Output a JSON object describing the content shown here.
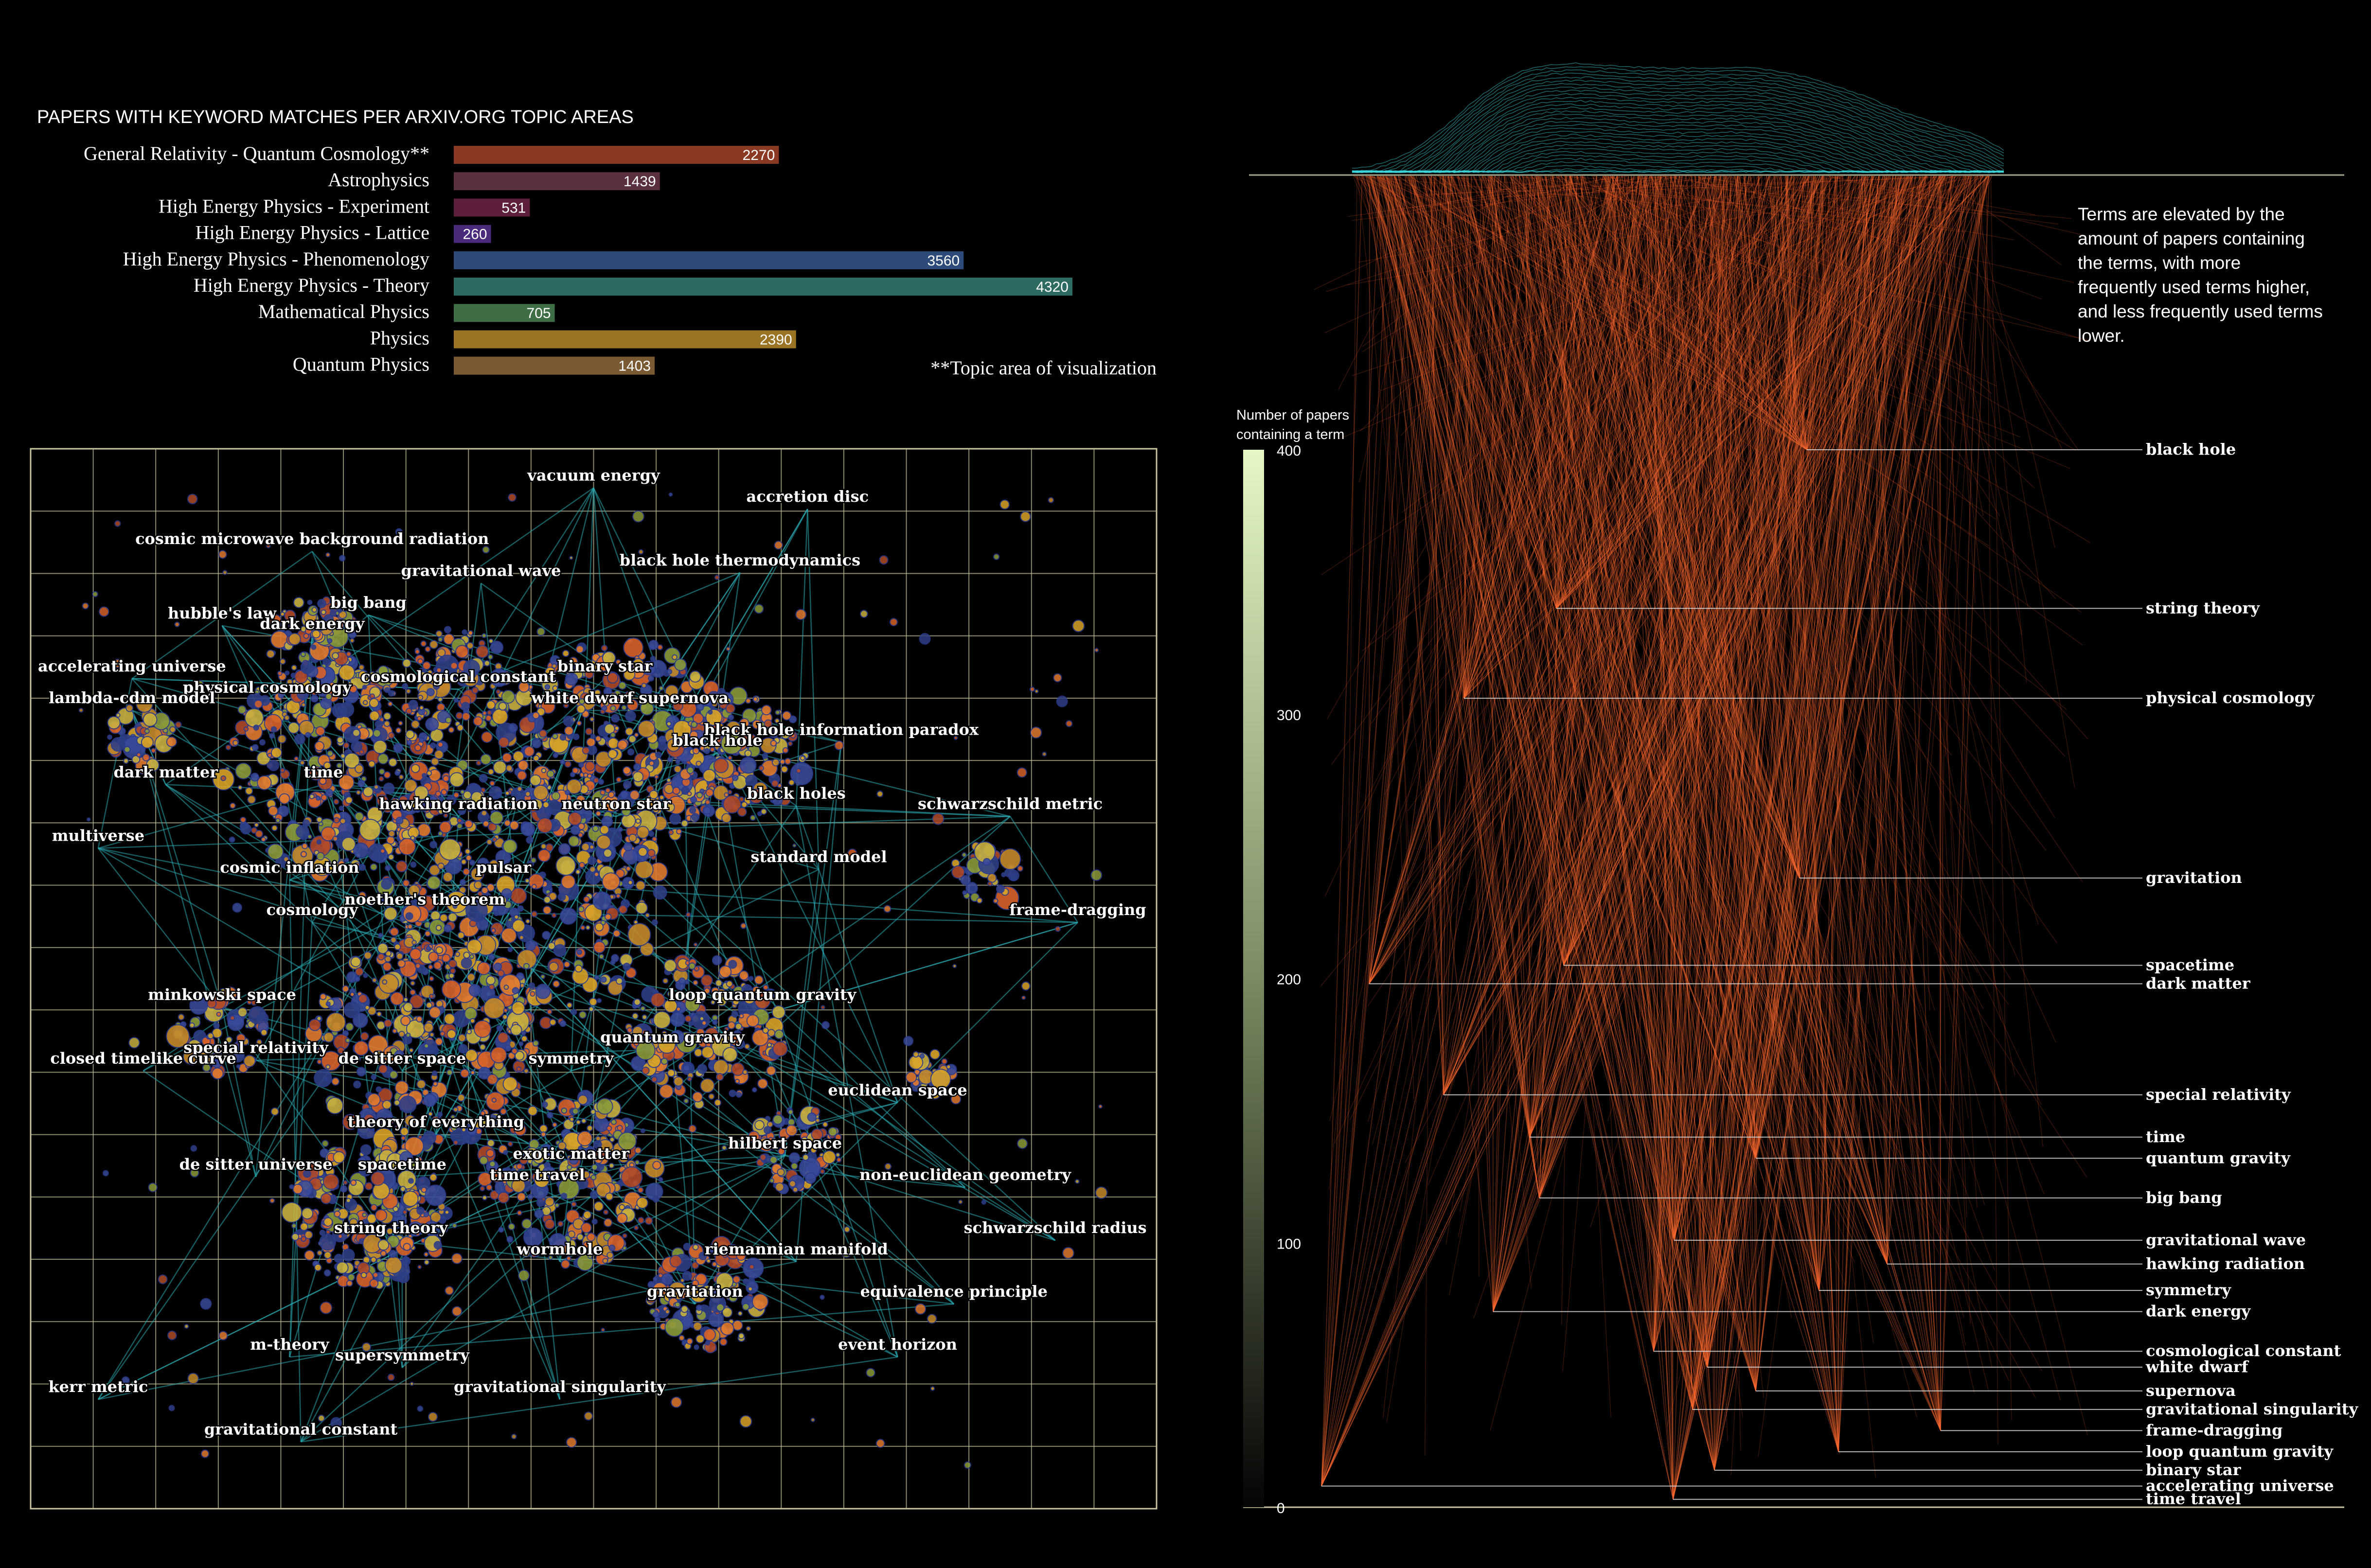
{
  "chart_data": [
    {
      "type": "bar",
      "title": "PAPERS WITH KEYWORD MATCHES PER ARXIV.ORG TOPIC AREAS",
      "note": "**Topic area of visualization",
      "xlim": [
        0,
        4320
      ],
      "bars": [
        {
          "category": "General Relativity - Quantum Cosmology**",
          "value": 2270,
          "label": "2270",
          "color": "#8a3a22"
        },
        {
          "category": "Astrophysics",
          "value": 1439,
          "label": "1439",
          "color": "#5a3040"
        },
        {
          "category": "High Energy Physics - Experiment",
          "value": 531,
          "label": "531",
          "color": "#5e1f3c"
        },
        {
          "category": "High Energy Physics - Lattice",
          "value": 260,
          "label": "260",
          "color": "#4a2a7a"
        },
        {
          "category": "High Energy Physics - Phenomenology",
          "value": 3560,
          "label": "3560",
          "color": "#2e4a78"
        },
        {
          "category": "High Energy Physics - Theory",
          "value": 4320,
          "label": "4320",
          "color": "#2d6a62"
        },
        {
          "category": "Mathematical Physics",
          "value": 705,
          "label": "705",
          "color": "#3f6e46"
        },
        {
          "category": "Physics",
          "value": 2390,
          "label": "2390",
          "color": "#9a7424"
        },
        {
          "category": "Quantum Physics",
          "value": 1403,
          "label": "1403",
          "color": "#7a5a32"
        }
      ]
    },
    {
      "type": "scatter",
      "description_labels": [
        {
          "label": "vacuum energy",
          "x": 0.5,
          "y": 0.03
        },
        {
          "label": "accretion disc",
          "x": 0.69,
          "y": 0.05
        },
        {
          "label": "cosmic microwave background radiation",
          "x": 0.25,
          "y": 0.09
        },
        {
          "label": "gravitational wave",
          "x": 0.4,
          "y": 0.12
        },
        {
          "label": "black hole thermodynamics",
          "x": 0.63,
          "y": 0.11
        },
        {
          "label": "big bang",
          "x": 0.3,
          "y": 0.15
        },
        {
          "label": "hubble's law",
          "x": 0.17,
          "y": 0.16
        },
        {
          "label": "dark energy",
          "x": 0.25,
          "y": 0.17
        },
        {
          "label": "binary star",
          "x": 0.51,
          "y": 0.21
        },
        {
          "label": "accelerating universe",
          "x": 0.09,
          "y": 0.21
        },
        {
          "label": "cosmological constant",
          "x": 0.38,
          "y": 0.22
        },
        {
          "label": "physical cosmology",
          "x": 0.21,
          "y": 0.23
        },
        {
          "label": "white dwarf",
          "x": 0.49,
          "y": 0.24
        },
        {
          "label": "supernova",
          "x": 0.58,
          "y": 0.24
        },
        {
          "label": "lambda-cdm model",
          "x": 0.09,
          "y": 0.24
        },
        {
          "label": "black hole information paradox",
          "x": 0.72,
          "y": 0.27
        },
        {
          "label": "black hole",
          "x": 0.61,
          "y": 0.28
        },
        {
          "label": "dark matter",
          "x": 0.12,
          "y": 0.31
        },
        {
          "label": "time",
          "x": 0.26,
          "y": 0.31
        },
        {
          "label": "black holes",
          "x": 0.68,
          "y": 0.33
        },
        {
          "label": "hawking radiation",
          "x": 0.38,
          "y": 0.34
        },
        {
          "label": "neutron star",
          "x": 0.52,
          "y": 0.34
        },
        {
          "label": "schwarzschild metric",
          "x": 0.87,
          "y": 0.34
        },
        {
          "label": "multiverse",
          "x": 0.06,
          "y": 0.37
        },
        {
          "label": "standard model",
          "x": 0.7,
          "y": 0.39
        },
        {
          "label": "pulsar",
          "x": 0.42,
          "y": 0.4
        },
        {
          "label": "cosmic inflation",
          "x": 0.23,
          "y": 0.4
        },
        {
          "label": "noether's theorem",
          "x": 0.35,
          "y": 0.43
        },
        {
          "label": "cosmology",
          "x": 0.25,
          "y": 0.44
        },
        {
          "label": "frame-dragging",
          "x": 0.93,
          "y": 0.44
        },
        {
          "label": "minkowski space",
          "x": 0.17,
          "y": 0.52
        },
        {
          "label": "loop quantum gravity",
          "x": 0.65,
          "y": 0.52
        },
        {
          "label": "special relativity",
          "x": 0.2,
          "y": 0.57
        },
        {
          "label": "quantum gravity",
          "x": 0.57,
          "y": 0.56
        },
        {
          "label": "de sitter space",
          "x": 0.33,
          "y": 0.58
        },
        {
          "label": "closed timelike curve",
          "x": 0.1,
          "y": 0.58
        },
        {
          "label": "symmetry",
          "x": 0.48,
          "y": 0.58
        },
        {
          "label": "euclidean space",
          "x": 0.77,
          "y": 0.61
        },
        {
          "label": "theory of everything",
          "x": 0.36,
          "y": 0.64
        },
        {
          "label": "hilbert space",
          "x": 0.67,
          "y": 0.66
        },
        {
          "label": "exotic matter",
          "x": 0.48,
          "y": 0.67
        },
        {
          "label": "de sitter universe",
          "x": 0.2,
          "y": 0.68
        },
        {
          "label": "spacetime",
          "x": 0.33,
          "y": 0.68
        },
        {
          "label": "time travel",
          "x": 0.45,
          "y": 0.69
        },
        {
          "label": "non-euclidean geometry",
          "x": 0.83,
          "y": 0.69
        },
        {
          "label": "string theory",
          "x": 0.32,
          "y": 0.74
        },
        {
          "label": "schwarzschild radius",
          "x": 0.91,
          "y": 0.74
        },
        {
          "label": "wormhole",
          "x": 0.47,
          "y": 0.76
        },
        {
          "label": "riemannian manifold",
          "x": 0.68,
          "y": 0.76
        },
        {
          "label": "gravitation",
          "x": 0.59,
          "y": 0.8
        },
        {
          "label": "equivalence principle",
          "x": 0.82,
          "y": 0.8
        },
        {
          "label": "m-theory",
          "x": 0.23,
          "y": 0.85
        },
        {
          "label": "event horizon",
          "x": 0.77,
          "y": 0.85
        },
        {
          "label": "supersymmetry",
          "x": 0.33,
          "y": 0.86
        },
        {
          "label": "gravitational singularity",
          "x": 0.47,
          "y": 0.89
        },
        {
          "label": "kerr metric",
          "x": 0.06,
          "y": 0.89
        },
        {
          "label": "gravitational constant",
          "x": 0.24,
          "y": 0.93
        }
      ]
    },
    {
      "type": "line",
      "note": "Terms are elevated by the amount of papers containing the terms, with more frequently used terms higher, and less frequently used terms lower.",
      "colorbar": {
        "title": [
          "Number of papers",
          "containing a term"
        ],
        "ticks": [
          "400",
          "300",
          "200",
          "100",
          "0"
        ]
      },
      "ylim": [
        0,
        400
      ],
      "terms": [
        {
          "label": "black hole",
          "y": 400
        },
        {
          "label": "string theory",
          "y": 340
        },
        {
          "label": "physical cosmology",
          "y": 306
        },
        {
          "label": "gravitation",
          "y": 238
        },
        {
          "label": "spacetime",
          "y": 205
        },
        {
          "label": "dark matter",
          "y": 198
        },
        {
          "label": "special relativity",
          "y": 156
        },
        {
          "label": "time",
          "y": 140
        },
        {
          "label": "quantum gravity",
          "y": 132
        },
        {
          "label": "big bang",
          "y": 117
        },
        {
          "label": "gravitational wave",
          "y": 101
        },
        {
          "label": "hawking radiation",
          "y": 92
        },
        {
          "label": "symmetry",
          "y": 82
        },
        {
          "label": "dark energy",
          "y": 74
        },
        {
          "label": "cosmological constant",
          "y": 59
        },
        {
          "label": "white dwarf",
          "y": 53
        },
        {
          "label": "supernova",
          "y": 44
        },
        {
          "label": "gravitational singularity",
          "y": 37
        },
        {
          "label": "frame-dragging",
          "y": 29
        },
        {
          "label": "loop quantum gravity",
          "y": 21
        },
        {
          "label": "binary star",
          "y": 14
        },
        {
          "label": "accelerating universe",
          "y": 8
        },
        {
          "label": "time travel",
          "y": 3
        }
      ]
    }
  ],
  "colors": {
    "background": "#000000",
    "grid": "#c8c4a0",
    "network_link": "#2aa8b0",
    "spike": "#ff5a28",
    "ridge": "#3fd6dc",
    "colorbar_top": "#e4f7c4",
    "colorbar_bottom": "#000000"
  }
}
